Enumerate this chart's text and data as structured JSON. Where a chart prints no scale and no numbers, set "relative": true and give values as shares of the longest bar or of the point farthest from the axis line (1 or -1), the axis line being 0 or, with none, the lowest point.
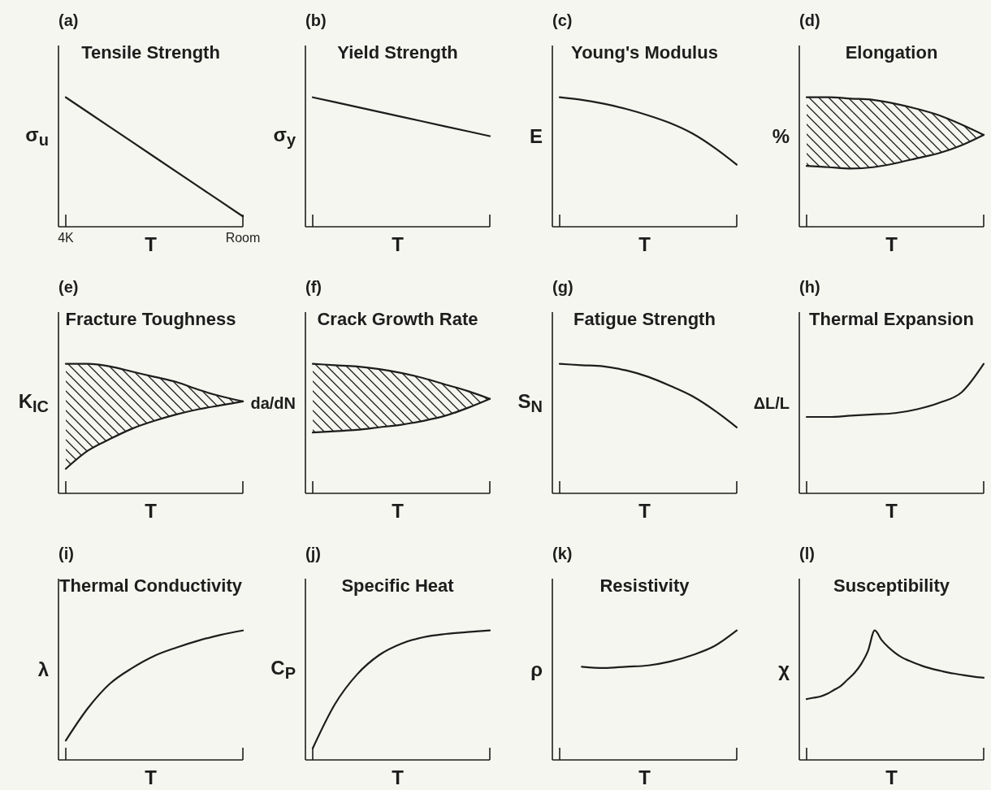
{
  "chart_data": [
    {
      "type": "line",
      "title": "Tensile Strength",
      "xlabel": "T",
      "ylabel": "σ$_{u}$",
      "annotations": [
        "(a)"
      ],
      "relative": true,
      "categories": [
        "4K",
        null,
        null,
        null,
        "Room"
      ],
      "series": [
        {
          "color": "#1d1d1d",
          "values": [
            1,
            0.77,
            0.54,
            0.31,
            0.08
          ]
        }
      ]
    },
    {
      "type": "line",
      "title": "Yield Strength",
      "xlabel": "T",
      "ylabel": "σ$_{y}$",
      "annotations": [
        "(b)"
      ],
      "relative": true,
      "categories": [
        null,
        null,
        null,
        null,
        null
      ],
      "series": [
        {
          "color": "#1d1d1d",
          "values": [
            1,
            0.925,
            0.85,
            0.775,
            0.7
          ]
        }
      ]
    },
    {
      "type": "line",
      "title": "Young's Modulus",
      "xlabel": "T",
      "ylabel": "E",
      "annotations": [
        "(c)"
      ],
      "relative": true,
      "categories": [
        null,
        null,
        null,
        null,
        null,
        null,
        null,
        null,
        null
      ],
      "series": [
        {
          "color": "#1d1d1d",
          "values": [
            1,
            0.98,
            0.95,
            0.91,
            0.86,
            0.8,
            0.72,
            0.61,
            0.48
          ]
        }
      ]
    },
    {
      "type": "line",
      "title": "Elongation",
      "xlabel": "T",
      "ylabel": "%",
      "annotations": [
        "(d)"
      ],
      "relative": true,
      "categories": [
        null,
        null,
        null,
        null,
        null,
        null,
        null,
        null,
        null
      ],
      "series": [
        {
          "color": "#1d1d1d",
          "values": [
            1,
            1,
            0.99,
            0.98,
            0.95,
            0.91,
            0.86,
            0.79,
            0.71
          ],
          "upper": [
            1,
            1,
            0.99,
            0.98,
            0.95,
            0.91,
            0.86,
            0.79,
            0.71
          ],
          "lower": [
            0.47,
            0.46,
            0.45,
            0.46,
            0.49,
            0.53,
            0.57,
            0.63,
            0.71
          ]
        },
        {
          "color": "#1d1d1d",
          "values": [
            0.47,
            0.46,
            0.45,
            0.46,
            0.49,
            0.53,
            0.57,
            0.63,
            0.71
          ]
        }
      ]
    },
    {
      "type": "line",
      "title": "Fracture Toughness",
      "xlabel": "T",
      "ylabel": "K$_{IC}$",
      "annotations": [
        "(e)"
      ],
      "relative": true,
      "categories": [
        null,
        null,
        null,
        null,
        null,
        null,
        null,
        null,
        null
      ],
      "series": [
        {
          "color": "#1d1d1d",
          "values": [
            1,
            1,
            0.98,
            0.94,
            0.9,
            0.86,
            0.8,
            0.75,
            0.71
          ],
          "upper": [
            1,
            1,
            0.98,
            0.94,
            0.9,
            0.86,
            0.8,
            0.75,
            0.71
          ],
          "lower": [
            0.19,
            0.33,
            0.42,
            0.5,
            0.56,
            0.61,
            0.65,
            0.68,
            0.71
          ]
        },
        {
          "color": "#1d1d1d",
          "values": [
            0.19,
            0.33,
            0.42,
            0.5,
            0.56,
            0.61,
            0.65,
            0.68,
            0.71
          ]
        }
      ]
    },
    {
      "type": "line",
      "title": "Crack Growth Rate",
      "xlabel": "T",
      "ylabel": "da/dN",
      "annotations": [
        "(f)"
      ],
      "relative": true,
      "categories": [
        null,
        null,
        null,
        null,
        null,
        null,
        null,
        null,
        null
      ],
      "series": [
        {
          "color": "#1d1d1d",
          "values": [
            1,
            0.99,
            0.98,
            0.96,
            0.93,
            0.89,
            0.84,
            0.79,
            0.73
          ],
          "upper": [
            1,
            0.99,
            0.98,
            0.96,
            0.93,
            0.89,
            0.84,
            0.79,
            0.73
          ],
          "lower": [
            0.47,
            0.48,
            0.49,
            0.51,
            0.53,
            0.56,
            0.6,
            0.66,
            0.73
          ]
        },
        {
          "color": "#1d1d1d",
          "values": [
            0.47,
            0.48,
            0.49,
            0.51,
            0.53,
            0.56,
            0.6,
            0.66,
            0.73
          ]
        }
      ]
    },
    {
      "type": "line",
      "title": "Fatigue Strength",
      "xlabel": "T",
      "ylabel": "S$_{N}$",
      "annotations": [
        "(g)"
      ],
      "relative": true,
      "categories": [
        null,
        null,
        null,
        null,
        null,
        null,
        null,
        null,
        null
      ],
      "series": [
        {
          "color": "#1d1d1d",
          "values": [
            1,
            0.99,
            0.98,
            0.95,
            0.9,
            0.83,
            0.75,
            0.64,
            0.51
          ]
        }
      ]
    },
    {
      "type": "line",
      "title": "Thermal Expansion",
      "xlabel": "T",
      "ylabel": "ΔL/L",
      "annotations": [
        "(h)"
      ],
      "relative": true,
      "categories": [
        null,
        null,
        null,
        null,
        null,
        null,
        null,
        null,
        null
      ],
      "series": [
        {
          "color": "#1d1d1d",
          "values": [
            0.59,
            0.59,
            0.6,
            0.61,
            0.62,
            0.65,
            0.7,
            0.78,
            1
          ]
        }
      ]
    },
    {
      "type": "line",
      "title": "Thermal Conductivity",
      "xlabel": "T",
      "ylabel": "λ",
      "annotations": [
        "(i)"
      ],
      "relative": true,
      "categories": [
        null,
        null,
        null,
        null,
        null,
        null,
        null,
        null,
        null
      ],
      "series": [
        {
          "color": "#1d1d1d",
          "values": [
            0.15,
            0.4,
            0.59,
            0.71,
            0.804,
            0.868,
            0.922,
            0.966,
            1
          ]
        }
      ]
    },
    {
      "type": "line",
      "title": "Specific Heat",
      "xlabel": "T",
      "ylabel": "C$_{P}$",
      "annotations": [
        "(j)"
      ],
      "relative": true,
      "categories": [
        null,
        null,
        null,
        null,
        null,
        null,
        null,
        null,
        null
      ],
      "series": [
        {
          "color": "#1d1d1d",
          "values": [
            0.09,
            0.43,
            0.66,
            0.81,
            0.898,
            0.948,
            0.973,
            0.988,
            1
          ]
        }
      ]
    },
    {
      "type": "line",
      "title": "Resistivity",
      "xlabel": "T",
      "ylabel": "ρ",
      "annotations": [
        "(k)"
      ],
      "relative": true,
      "categories": [
        null,
        null,
        null,
        null,
        null,
        null,
        null,
        null,
        null
      ],
      "series": [
        {
          "color": "#1d1d1d",
          "values": [
            null,
            0.72,
            0.71,
            0.72,
            0.73,
            0.76,
            0.81,
            0.88,
            1
          ]
        }
      ]
    },
    {
      "type": "line",
      "title": "Susceptibility",
      "xlabel": "T",
      "ylabel": "χ",
      "annotations": [
        "(l)"
      ],
      "relative": true,
      "categories": [
        null,
        null,
        null,
        null,
        null,
        null,
        null,
        null,
        null,
        null,
        null,
        null,
        null,
        null,
        null,
        null,
        null,
        null,
        null,
        null,
        null,
        null,
        null,
        null,
        null,
        null,
        null
      ],
      "series": [
        {
          "color": "#1d1d1d",
          "values": [
            0.47,
            0.48,
            0.49,
            0.51,
            0.54,
            0.57,
            0.62,
            0.67,
            0.74,
            0.84,
            1,
            0.927,
            0.871,
            0.827,
            0.792,
            0.767,
            0.745,
            0.726,
            0.71,
            0.696,
            0.684,
            0.673,
            0.664,
            0.655,
            0.647,
            0.64,
            0.635
          ]
        }
      ]
    }
  ]
}
